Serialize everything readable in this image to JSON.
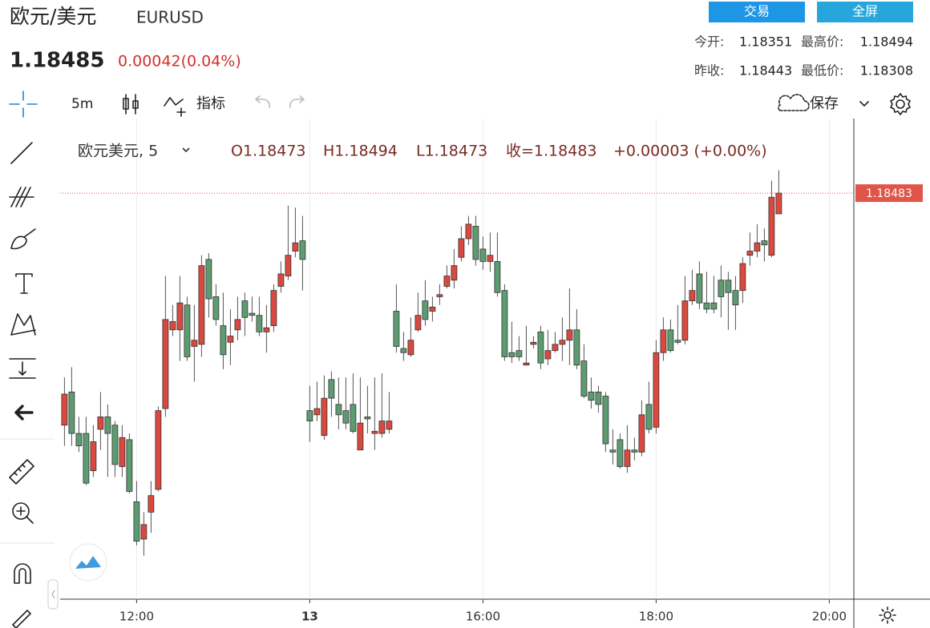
{
  "header": {
    "name": "欧元/美元",
    "symbol": "EURUSD",
    "price": 1.18485,
    "change": "0.00042(0.04%)",
    "buttons": [
      "交易",
      "全屏"
    ],
    "stats": [
      {
        "label": "今开:",
        "value": 1.18351
      },
      {
        "label": "最高价:",
        "value": 1.18494
      },
      {
        "label": "昨收:",
        "value": 1.18443
      },
      {
        "label": "最低价:",
        "value": 1.18308
      }
    ]
  },
  "toolbar": {
    "interval": "5m",
    "indicators": "指标",
    "save": "保存"
  },
  "legend": {
    "symbol": "欧元美元, 5",
    "open": "O1.18473",
    "high": "H1.18494",
    "low": "L1.18473",
    "close": "收=1.18483",
    "change": "+0.00003 (+0.00%)"
  },
  "chart_data": {
    "type": "candlestick",
    "up_color": "#d9493f",
    "down_color": "#5c9c70",
    "x_grid": true,
    "x": [
      "11:10",
      "11:15",
      "11:20",
      "11:25",
      "11:30",
      "11:35",
      "11:40",
      "11:45",
      "11:50",
      "11:55",
      "12:00",
      "12:05",
      "12:10",
      "12:15",
      "12:20",
      "12:25",
      "12:30",
      "12:35",
      "12:40",
      "12:45",
      "12:50",
      "12:55",
      "13:00",
      "13:05",
      "13:10",
      "13:15",
      "13:20",
      "13:25",
      "13:30",
      "13:35",
      "13:40",
      "13:45",
      "13:50",
      "13:55",
      "14:00",
      "14:05",
      "14:10",
      "14:15",
      "14:20",
      "14:25",
      "14:30",
      "14:35",
      "14:40",
      "14:45",
      "14:50",
      "14:55",
      "15:00",
      "15:05",
      "15:10",
      "15:15",
      "15:20",
      "15:25",
      "15:30",
      "15:35",
      "15:40",
      "15:45",
      "15:50",
      "15:55",
      "16:00",
      "16:05",
      "16:10",
      "16:15",
      "16:20",
      "16:25",
      "16:30",
      "16:35",
      "16:40",
      "16:45",
      "16:50",
      "16:55",
      "17:00",
      "17:05",
      "17:10",
      "17:15",
      "17:20",
      "17:25",
      "17:30",
      "17:35",
      "17:40",
      "17:45",
      "17:50",
      "17:55",
      "18:00",
      "18:05",
      "18:10",
      "18:15",
      "18:20",
      "18:25",
      "18:30",
      "18:35",
      "18:40",
      "18:45",
      "18:50",
      "18:55",
      "19:00",
      "19:05",
      "19:10",
      "19:15",
      "19:20",
      "19:25"
    ],
    "open": [
      1.18371,
      1.18387,
      1.18367,
      1.18367,
      1.18349,
      1.18369,
      1.18375,
      1.18371,
      1.18351,
      1.18364,
      1.18334,
      1.18316,
      1.18329,
      1.1834,
      1.18379,
      1.18417,
      1.18417,
      1.18429,
      1.18409,
      1.1841,
      1.18451,
      1.18433,
      1.18419,
      1.18411,
      1.18417,
      1.18431,
      1.18425,
      1.18424,
      1.18416,
      1.18419,
      1.18438,
      1.18443,
      1.18455,
      1.1846,
      1.18378,
      1.18376,
      1.18366,
      1.18393,
      1.18381,
      1.18378,
      1.18381,
      1.18359,
      1.18375,
      1.18367,
      1.18367,
      1.18369,
      1.18426,
      1.18408,
      1.18405,
      1.18417,
      1.18431,
      1.18426,
      1.18433,
      1.18438,
      1.18441,
      1.18452,
      1.18461,
      1.18467,
      1.18456,
      1.1845,
      1.1845,
      1.18436,
      1.18406,
      1.18407,
      1.184,
      1.1841,
      1.18416,
      1.18403,
      1.18407,
      1.1841,
      1.18412,
      1.18417,
      1.18402,
      1.18387,
      1.18387,
      1.18385,
      1.18359,
      1.18364,
      1.18351,
      1.18359,
      1.18358,
      1.18381,
      1.1837,
      1.18406,
      1.18417,
      1.18412,
      1.18412,
      1.18431,
      1.18444,
      1.1843,
      1.1843,
      1.18441,
      1.18441,
      1.18436,
      1.18436,
      1.18453,
      1.18455,
      1.1846,
      1.18453,
      1.18473
    ],
    "high": [
      1.18394,
      1.18399,
      1.18375,
      1.18375,
      1.18371,
      1.18387,
      1.18381,
      1.18373,
      1.18371,
      1.18367,
      1.18344,
      1.18329,
      1.18344,
      1.1838,
      1.18443,
      1.18429,
      1.18443,
      1.18433,
      1.18429,
      1.18453,
      1.18454,
      1.18439,
      1.18435,
      1.18427,
      1.18433,
      1.18435,
      1.18433,
      1.18433,
      1.18429,
      1.18439,
      1.1845,
      1.18477,
      1.18476,
      1.18472,
      1.1839,
      1.18392,
      1.18395,
      1.18397,
      1.18394,
      1.18394,
      1.18396,
      1.18394,
      1.1839,
      1.18394,
      1.18396,
      1.18387,
      1.18439,
      1.18416,
      1.18423,
      1.18435,
      1.18441,
      1.18433,
      1.18439,
      1.18448,
      1.18456,
      1.18467,
      1.18472,
      1.18472,
      1.18462,
      1.18464,
      1.18464,
      1.18439,
      1.18421,
      1.18414,
      1.18419,
      1.18414,
      1.18419,
      1.18417,
      1.18416,
      1.18423,
      1.18437,
      1.18427,
      1.1841,
      1.18394,
      1.1839,
      1.18387,
      1.18369,
      1.18367,
      1.18371,
      1.18365,
      1.18383,
      1.18392,
      1.18412,
      1.18423,
      1.18422,
      1.18429,
      1.18443,
      1.18446,
      1.1845,
      1.18445,
      1.18443,
      1.18448,
      1.18445,
      1.18443,
      1.18452,
      1.18464,
      1.18468,
      1.18466,
      1.18489,
      1.18494
    ],
    "low": [
      1.18361,
      1.18361,
      1.18358,
      1.18342,
      1.18346,
      1.18359,
      1.18346,
      1.18346,
      1.18346,
      1.18338,
      1.18313,
      1.18308,
      1.18319,
      1.18339,
      1.18375,
      1.18414,
      1.18402,
      1.18402,
      1.18392,
      1.18404,
      1.18423,
      1.18419,
      1.18398,
      1.184,
      1.18412,
      1.18414,
      1.18421,
      1.18414,
      1.18406,
      1.18416,
      1.18435,
      1.18441,
      1.18452,
      1.18436,
      1.18363,
      1.18373,
      1.18364,
      1.18375,
      1.18369,
      1.18369,
      1.18367,
      1.18359,
      1.18367,
      1.18359,
      1.18365,
      1.18367,
      1.18406,
      1.18402,
      1.18404,
      1.18416,
      1.18419,
      1.18421,
      1.18429,
      1.18437,
      1.18437,
      1.1845,
      1.18458,
      1.18448,
      1.18446,
      1.18445,
      1.18433,
      1.18402,
      1.18401,
      1.18402,
      1.184,
      1.18408,
      1.18398,
      1.184,
      1.18406,
      1.18402,
      1.184,
      1.18398,
      1.18384,
      1.18379,
      1.18377,
      1.18358,
      1.18352,
      1.1835,
      1.18348,
      1.18354,
      1.18356,
      1.18367,
      1.18367,
      1.18402,
      1.18406,
      1.1841,
      1.1841,
      1.18429,
      1.18427,
      1.18425,
      1.18425,
      1.18423,
      1.18417,
      1.18417,
      1.1843,
      1.18448,
      1.18452,
      1.1845,
      1.18452,
      1.18473
    ],
    "close": [
      1.18386,
      1.18367,
      1.18361,
      1.18343,
      1.18363,
      1.18375,
      1.18367,
      1.18352,
      1.18365,
      1.18339,
      1.18315,
      1.18323,
      1.18337,
      1.18378,
      1.18422,
      1.18421,
      1.1843,
      1.18404,
      1.18412,
      1.18448,
      1.18432,
      1.18422,
      1.18405,
      1.18414,
      1.18422,
      1.18423,
      1.18424,
      1.18416,
      1.18418,
      1.18436,
      1.18444,
      1.18453,
      1.18459,
      1.18451,
      1.18373,
      1.18379,
      1.18384,
      1.18384,
      1.18376,
      1.18372,
      1.18368,
      1.18372,
      1.18374,
      1.18368,
      1.18373,
      1.18373,
      1.18409,
      1.18406,
      1.18412,
      1.18424,
      1.18422,
      1.18428,
      1.18434,
      1.18443,
      1.18448,
      1.18461,
      1.18468,
      1.18451,
      1.1845,
      1.18453,
      1.18435,
      1.18404,
      1.18404,
      1.18404,
      1.18401,
      1.18411,
      1.18401,
      1.18407,
      1.1841,
      1.18412,
      1.18417,
      1.184,
      1.18385,
      1.18383,
      1.18381,
      1.18362,
      1.18358,
      1.18351,
      1.18359,
      1.18358,
      1.18376,
      1.18369,
      1.18406,
      1.18417,
      1.18407,
      1.18411,
      1.18431,
      1.18436,
      1.1843,
      1.18427,
      1.18427,
      1.18433,
      1.18435,
      1.18429,
      1.18449,
      1.18455,
      1.18459,
      1.18458,
      1.18481,
      1.18483
    ],
    "xlim": [
      "11:07",
      "20:17"
    ],
    "xticks": [
      "12:00",
      {
        "value": "14:00",
        "label": "13"
      },
      "16:00",
      "18:00",
      "20:00"
    ],
    "ylim": [
      1.18287,
      1.18519
    ],
    "last_price": 1.18483,
    "last_price_color": "#e0554a"
  }
}
